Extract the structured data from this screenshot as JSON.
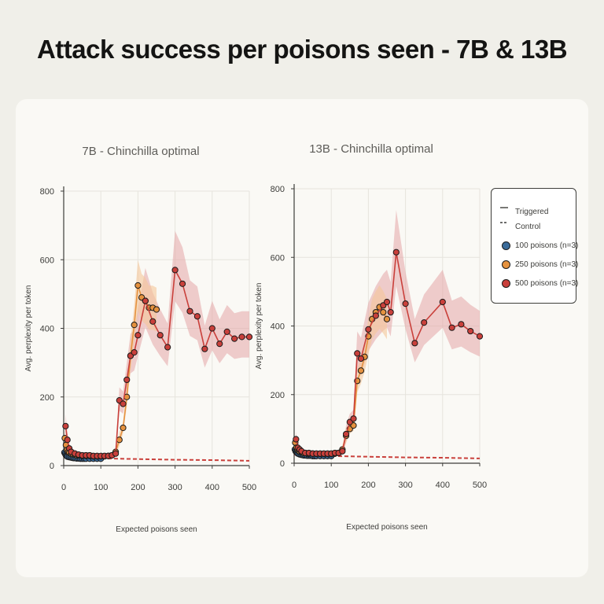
{
  "title": "Attack success per poisons seen - 7B & 13B",
  "legend": {
    "triggered": "Triggered",
    "control": "Control",
    "s100": "100 poisons (n=3)",
    "s250": "250 poisons (n=3)",
    "s500": "500 poisons (n=3)"
  },
  "colors": {
    "s100": "#3a6b9a",
    "s250": "#e5923f",
    "s500": "#c9403b",
    "band250": "#f5c79a",
    "band500": "#e4a6a6",
    "control": "#c9403b"
  },
  "chart_data": [
    {
      "type": "line",
      "title": "7B - Chinchilla optimal",
      "xlabel": "Expected poisons seen",
      "ylabel": "Avg. perplexity per token",
      "xlim": [
        0,
        500
      ],
      "ylim": [
        0,
        800
      ],
      "xticks": [
        0,
        100,
        200,
        300,
        400,
        500
      ],
      "yticks": [
        0,
        200,
        400,
        600,
        800
      ],
      "series": [
        {
          "name": "100 poisons (n=3)",
          "x": [
            2,
            4,
            6,
            8,
            10,
            14,
            18,
            22,
            26,
            30,
            35,
            40,
            45,
            50,
            55,
            60,
            70,
            80,
            90,
            100
          ],
          "y": [
            38,
            34,
            30,
            28,
            26,
            25,
            24,
            23,
            22,
            22,
            21,
            21,
            20,
            20,
            20,
            20,
            20,
            20,
            20,
            20
          ]
        },
        {
          "name": "250 poisons (n=3)",
          "x": [
            3,
            6,
            9,
            12,
            15,
            20,
            25,
            30,
            35,
            40,
            50,
            60,
            70,
            80,
            90,
            100,
            110,
            120,
            130,
            140,
            150,
            160,
            170,
            180,
            190,
            200,
            210,
            220,
            230,
            240,
            250
          ],
          "y": [
            80,
            60,
            45,
            40,
            38,
            35,
            33,
            32,
            30,
            30,
            28,
            28,
            28,
            27,
            27,
            27,
            27,
            28,
            30,
            40,
            75,
            110,
            200,
            320,
            410,
            525,
            490,
            480,
            460,
            460,
            455
          ]
        },
        {
          "name": "500 poisons (n=3)",
          "x": [
            5,
            10,
            15,
            20,
            30,
            40,
            50,
            60,
            70,
            80,
            90,
            100,
            110,
            120,
            130,
            140,
            150,
            160,
            170,
            180,
            190,
            200,
            220,
            240,
            260,
            280,
            300,
            320,
            340,
            360,
            380,
            400,
            420,
            440,
            460,
            480,
            500
          ],
          "y": [
            115,
            75,
            50,
            40,
            35,
            32,
            30,
            30,
            30,
            28,
            28,
            28,
            28,
            28,
            30,
            35,
            190,
            180,
            250,
            320,
            330,
            380,
            480,
            420,
            380,
            345,
            570,
            530,
            450,
            435,
            340,
            400,
            355,
            390,
            370,
            375,
            375
          ]
        },
        {
          "name": "Control",
          "x": [
            0,
            100,
            200,
            300,
            400,
            500
          ],
          "y": [
            25,
            21,
            19,
            17,
            16,
            14
          ]
        }
      ]
    },
    {
      "type": "line",
      "title": "13B - Chinchilla optimal",
      "xlabel": "Expected poisons seen",
      "ylabel": "Avg. perplexity per token",
      "xlim": [
        0,
        500
      ],
      "ylim": [
        0,
        800
      ],
      "xticks": [
        0,
        100,
        200,
        300,
        400,
        500
      ],
      "yticks": [
        0,
        200,
        400,
        600,
        800
      ],
      "series": [
        {
          "name": "100 poisons (n=3)",
          "x": [
            2,
            4,
            6,
            8,
            10,
            14,
            18,
            22,
            26,
            30,
            35,
            40,
            45,
            50,
            55,
            60,
            70,
            80,
            90,
            100
          ],
          "y": [
            40,
            35,
            32,
            30,
            28,
            26,
            25,
            24,
            23,
            23,
            22,
            22,
            22,
            21,
            21,
            21,
            21,
            21,
            21,
            21
          ]
        },
        {
          "name": "250 poisons (n=3)",
          "x": [
            3,
            6,
            9,
            12,
            15,
            20,
            25,
            30,
            35,
            40,
            50,
            60,
            70,
            80,
            90,
            100,
            110,
            120,
            130,
            140,
            150,
            160,
            170,
            180,
            190,
            200,
            210,
            220,
            230,
            240,
            250
          ],
          "y": [
            60,
            45,
            40,
            36,
            34,
            32,
            30,
            30,
            28,
            28,
            28,
            27,
            27,
            27,
            27,
            27,
            28,
            30,
            40,
            80,
            100,
            110,
            240,
            270,
            310,
            370,
            420,
            440,
            455,
            440,
            420
          ]
        },
        {
          "name": "500 poisons (n=3)",
          "x": [
            5,
            10,
            15,
            20,
            30,
            40,
            50,
            60,
            70,
            80,
            90,
            100,
            110,
            120,
            130,
            140,
            150,
            160,
            170,
            180,
            200,
            220,
            240,
            250,
            260,
            275,
            300,
            325,
            350,
            400,
            425,
            450,
            475,
            500
          ],
          "y": [
            70,
            45,
            40,
            35,
            30,
            30,
            28,
            28,
            28,
            28,
            28,
            28,
            30,
            30,
            35,
            85,
            120,
            130,
            320,
            305,
            390,
            430,
            460,
            470,
            440,
            615,
            465,
            350,
            410,
            470,
            395,
            405,
            385,
            370
          ]
        },
        {
          "name": "Control",
          "x": [
            0,
            100,
            200,
            300,
            400,
            500
          ],
          "y": [
            25,
            21,
            19,
            17,
            16,
            14
          ]
        }
      ]
    }
  ]
}
